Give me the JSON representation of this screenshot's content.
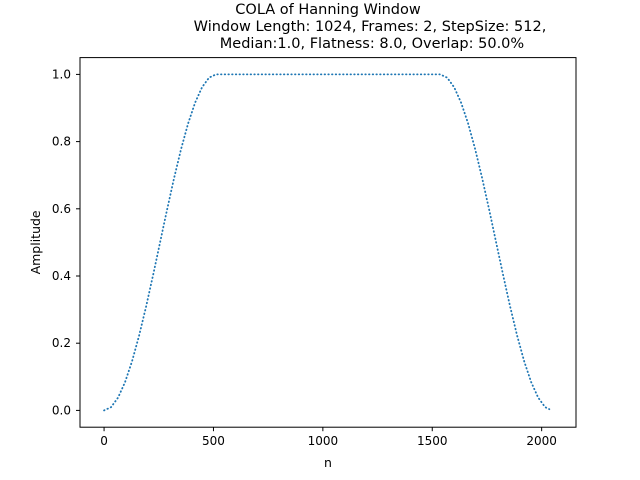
{
  "chart_data": {
    "type": "line",
    "title_lines": [
      "COLA of Hanning Window",
      "Window Length: 1024, Frames: 2, StepSize: 512,",
      "Median:1.0, Flatness: 8.0, Overlap: 50.0%"
    ],
    "xlabel": "n",
    "ylabel": "Amplitude",
    "xlim": [
      -110,
      2157
    ],
    "ylim": [
      -0.05,
      1.05
    ],
    "x_ticks": [
      0,
      500,
      1000,
      1500,
      2000
    ],
    "y_ticks": [
      0.0,
      0.2,
      0.4,
      0.6,
      0.8,
      1.0
    ],
    "x_tick_labels": [
      "0",
      "500",
      "1000",
      "1500",
      "2000"
    ],
    "y_tick_labels": [
      "0.0",
      "0.2",
      "0.4",
      "0.6",
      "0.8",
      "1.0"
    ],
    "grid": false,
    "line_style": "dotted",
    "line_color": "#1f77b4",
    "series": [
      {
        "x": [
          0,
          32,
          64,
          96,
          128,
          160,
          192,
          224,
          256,
          288,
          320,
          352,
          384,
          416,
          448,
          480,
          512,
          544,
          576,
          608,
          640,
          672,
          704,
          736,
          768,
          800,
          832,
          864,
          896,
          928,
          960,
          992,
          1024,
          1056,
          1088,
          1120,
          1152,
          1184,
          1216,
          1248,
          1280,
          1312,
          1344,
          1376,
          1408,
          1440,
          1472,
          1504,
          1536,
          1568,
          1600,
          1632,
          1664,
          1696,
          1728,
          1760,
          1792,
          1824,
          1856,
          1888,
          1920,
          1952,
          1984,
          2016,
          2035
        ],
        "y": [
          0.0,
          0.0096,
          0.0381,
          0.0843,
          0.1464,
          0.2222,
          0.3087,
          0.4025,
          0.5,
          0.5975,
          0.6913,
          0.7778,
          0.8536,
          0.9157,
          0.9619,
          0.9904,
          1.0,
          1.0,
          1.0,
          1.0,
          1.0,
          1.0,
          1.0,
          1.0,
          1.0,
          1.0,
          1.0,
          1.0,
          1.0,
          1.0,
          1.0,
          1.0,
          1.0,
          1.0,
          1.0,
          1.0,
          1.0,
          1.0,
          1.0,
          1.0,
          1.0,
          1.0,
          1.0,
          1.0,
          1.0,
          1.0,
          1.0,
          1.0,
          1.0,
          0.9904,
          0.9619,
          0.9157,
          0.8536,
          0.7778,
          0.6913,
          0.5975,
          0.5,
          0.4025,
          0.3087,
          0.2222,
          0.1464,
          0.0843,
          0.0381,
          0.0096,
          0.0036
        ]
      }
    ]
  }
}
